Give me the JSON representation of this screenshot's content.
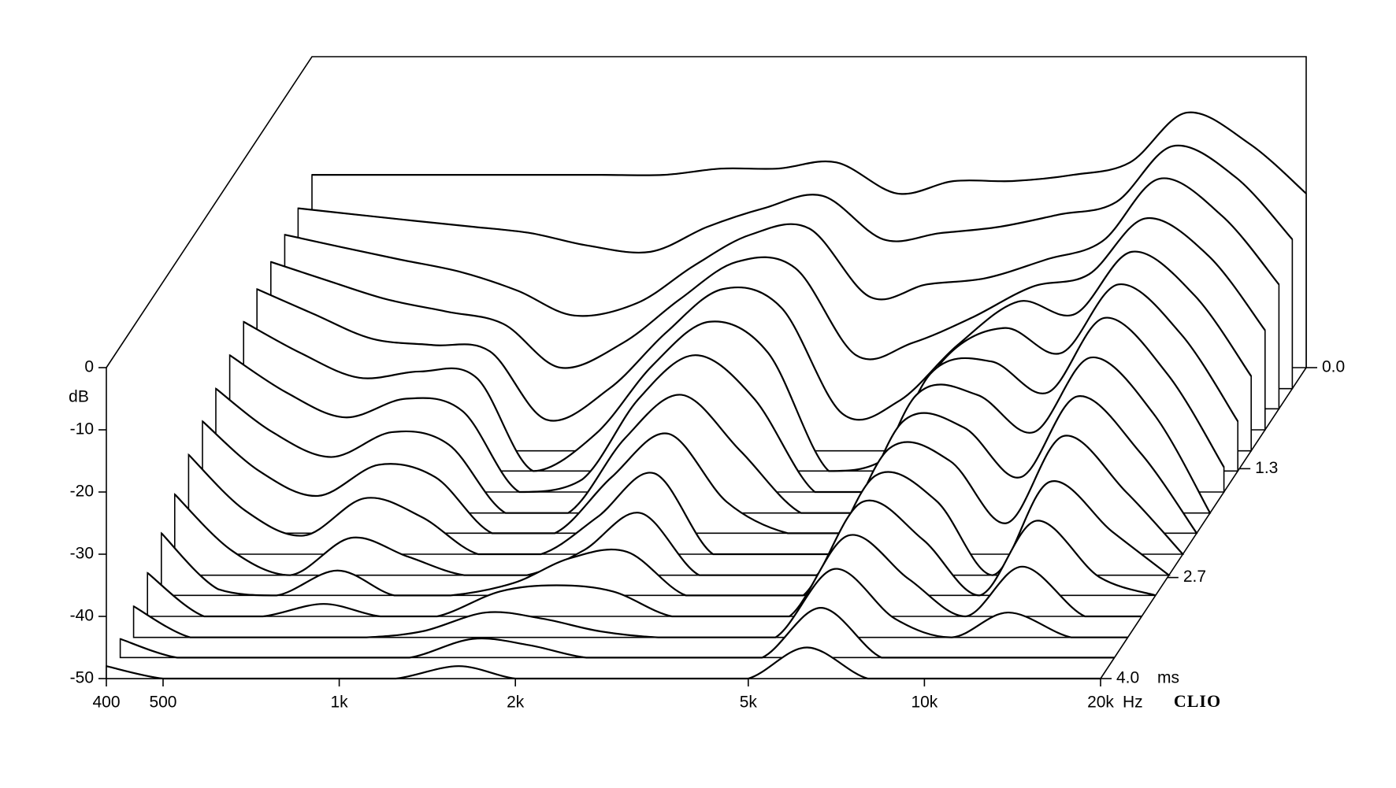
{
  "chart_data": {
    "type": "waterfall",
    "x": [
      400,
      500,
      630,
      800,
      1000,
      1250,
      1600,
      2000,
      2500,
      3150,
      4000,
      5000,
      6300,
      8000,
      10000,
      12500,
      16000,
      20000
    ],
    "x_unit": "Hz",
    "y_label": "dB",
    "z_unit": "ms",
    "brand": "CLIO",
    "log_x": true,
    "xlim": [
      400,
      20000
    ],
    "xticks": [
      400,
      500,
      {
        "value": 1000,
        "label": "1k"
      },
      {
        "value": 2000,
        "label": "2k"
      },
      {
        "value": 5000,
        "label": "5k"
      },
      {
        "value": 10000,
        "label": "10k"
      },
      {
        "value": 20000,
        "label": "20k"
      }
    ],
    "ylim": [
      -50,
      0
    ],
    "yticks": [
      0,
      -10,
      -20,
      -30,
      -40,
      -50
    ],
    "zlim": [
      0,
      4
    ],
    "zticks": [
      {
        "value": 0,
        "label": "0.0"
      },
      1.3,
      2.7,
      {
        "value": 4,
        "label": "4.0"
      }
    ],
    "color": "#000000",
    "series": [
      {
        "time": 0,
        "values": [
          -19,
          -19,
          -19,
          -19,
          -19,
          -19,
          -19,
          -18,
          -18,
          -17,
          -22,
          -20,
          -20,
          -19,
          -17,
          -9,
          -14,
          -22
        ]
      },
      {
        "time": 0.27,
        "values": [
          -21,
          -22,
          -23,
          -24,
          -25,
          -27,
          -28,
          -24,
          -21,
          -19,
          -26,
          -25,
          -24,
          -22,
          -20,
          -11,
          -16,
          -26
        ]
      },
      {
        "time": 0.53,
        "values": [
          -22,
          -24,
          -26,
          -28,
          -31,
          -35,
          -33,
          -27,
          -22,
          -21,
          -32,
          -30,
          -29,
          -26,
          -23,
          -13,
          -19,
          -30
        ]
      },
      {
        "time": 0.8,
        "values": [
          -23,
          -26,
          -29,
          -31,
          -33,
          -40,
          -36,
          -29,
          -23,
          -24,
          -38,
          -36,
          -32,
          -27,
          -25,
          -16,
          -22,
          -34
        ]
      },
      {
        "time": 1.07,
        "values": [
          -24,
          -28,
          -32,
          -33,
          -34,
          -45,
          -40,
          -31,
          -24,
          -27,
          -44,
          -42,
          -33,
          -26,
          -28,
          -18,
          -25,
          -38
        ]
      },
      {
        "time": 1.33,
        "values": [
          -26,
          -31,
          -35,
          -34,
          -35,
          -50,
          -44,
          -33,
          -26,
          -31,
          -50,
          -48,
          -32,
          -27,
          -31,
          -20,
          -28,
          -42
        ]
      },
      {
        "time": 1.6,
        "values": [
          -28,
          -34,
          -38,
          -35,
          -37,
          -50,
          -48,
          -35,
          -28,
          -35,
          -50,
          -50,
          -31,
          -29,
          -34,
          -22,
          -31,
          -46
        ]
      },
      {
        "time": 1.87,
        "values": [
          -30,
          -37,
          -41,
          -37,
          -39,
          -50,
          -50,
          -38,
          -31,
          -40,
          -50,
          -50,
          -31,
          -31,
          -37,
          -25,
          -34,
          -50
        ]
      },
      {
        "time": 2.13,
        "values": [
          -32,
          -40,
          -44,
          -39,
          -41,
          -50,
          -50,
          -41,
          -34,
          -45,
          -50,
          -50,
          -32,
          -33,
          -41,
          -28,
          -37,
          -50
        ]
      },
      {
        "time": 2.4,
        "values": [
          -34,
          -43,
          -47,
          -41,
          -44,
          -50,
          -50,
          -44,
          -37,
          -50,
          -50,
          -50,
          -33,
          -35,
          -45,
          -31,
          -40,
          -50
        ]
      },
      {
        "time": 2.67,
        "values": [
          -37,
          -46,
          -50,
          -44,
          -47,
          -50,
          -50,
          -46,
          -40,
          -50,
          -50,
          -50,
          -34,
          -38,
          -50,
          -35,
          -43,
          -50
        ]
      },
      {
        "time": 2.93,
        "values": [
          -40,
          -49,
          -50,
          -46,
          -50,
          -50,
          -48,
          -44,
          -43,
          -50,
          -50,
          -50,
          -35,
          -41,
          -50,
          -38,
          -47,
          -50
        ]
      },
      {
        "time": 3.2,
        "values": [
          -43,
          -50,
          -50,
          -48,
          -50,
          -50,
          -46,
          -45,
          -46,
          -50,
          -50,
          -50,
          -37,
          -44,
          -50,
          -42,
          -50,
          -50
        ]
      },
      {
        "time": 3.47,
        "values": [
          -45,
          -50,
          -50,
          -50,
          -50,
          -49,
          -46,
          -47,
          -49,
          -50,
          -50,
          -50,
          -39,
          -47,
          -50,
          -46,
          -50,
          -50
        ]
      },
      {
        "time": 3.73,
        "values": [
          -47,
          -50,
          -50,
          -50,
          -50,
          -50,
          -47,
          -48,
          -50,
          -50,
          -50,
          -50,
          -42,
          -50,
          -50,
          -50,
          -50,
          -50
        ]
      },
      {
        "time": 4,
        "values": [
          -48,
          -50,
          -50,
          -50,
          -50,
          -50,
          -48,
          -50,
          -50,
          -50,
          -50,
          -50,
          -45,
          -50,
          -50,
          -50,
          -50,
          -50
        ]
      }
    ]
  }
}
